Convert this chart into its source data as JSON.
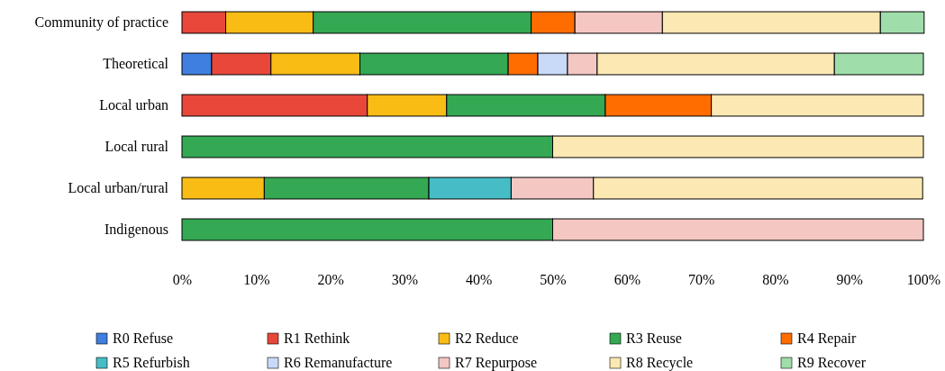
{
  "chart_data": {
    "type": "bar",
    "orientation": "horizontal",
    "stacked": true,
    "legend": "bottom",
    "grid": false,
    "categories": [
      "Community of practice",
      "Theoretical",
      "Local urban",
      "Local rural",
      "Local urban/rural",
      "Indigenous"
    ],
    "xlim": [
      0,
      100
    ],
    "xticks": [
      {
        "value": 0,
        "label": "0%"
      },
      {
        "value": 10,
        "label": "10%"
      },
      {
        "value": 20,
        "label": "20%"
      },
      {
        "value": 30,
        "label": "30%"
      },
      {
        "value": 40,
        "label": "40%"
      },
      {
        "value": 50,
        "label": "50%"
      },
      {
        "value": 60,
        "label": "60%"
      },
      {
        "value": 70,
        "label": "70%"
      },
      {
        "value": 80,
        "label": "80%"
      },
      {
        "value": 90,
        "label": "90%"
      },
      {
        "value": 100,
        "label": "100%"
      }
    ],
    "series": [
      {
        "name": "R0 Refuse",
        "color": "#3f7fe0",
        "values": [
          null,
          4,
          null,
          null,
          null,
          null
        ]
      },
      {
        "name": "R1 Rethink",
        "color": "#e8473a",
        "values": [
          5.9,
          8,
          25,
          null,
          null,
          null
        ]
      },
      {
        "name": "R2 Reduce",
        "color": "#f9bc15",
        "values": [
          11.8,
          12,
          10.7,
          null,
          11.1,
          null
        ]
      },
      {
        "name": "R3 Reuse",
        "color": "#34a853",
        "values": [
          29.4,
          20,
          21.4,
          50,
          22.2,
          50
        ]
      },
      {
        "name": "R4 Repair",
        "color": "#ff6d01",
        "values": [
          5.9,
          4,
          14.3,
          null,
          null,
          null
        ]
      },
      {
        "name": "R5 Refurbish",
        "color": "#46bdc6",
        "values": [
          null,
          null,
          null,
          null,
          11.1,
          null
        ]
      },
      {
        "name": "R6 Remanufacture",
        "color": "#c9daf8",
        "values": [
          null,
          4,
          null,
          null,
          null,
          null
        ]
      },
      {
        "name": "R7 Repurpose",
        "color": "#f4c7c3",
        "values": [
          11.8,
          4,
          null,
          null,
          11.1,
          50
        ]
      },
      {
        "name": "R8 Recycle",
        "color": "#fce8b2",
        "values": [
          29.4,
          32,
          28.6,
          50,
          44.4,
          null
        ]
      },
      {
        "name": "R9 Recover",
        "color": "#9fdeab",
        "values": [
          5.9,
          12,
          null,
          null,
          null,
          null
        ]
      }
    ]
  }
}
